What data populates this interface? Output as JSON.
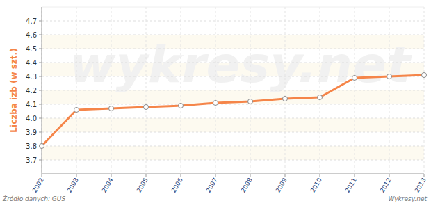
{
  "chart_data": {
    "type": "line",
    "y_label": "Liczba izb (w szt.)",
    "source": "Źródło danych: GUS",
    "credit": "Wykresy.net",
    "watermark": "wykresy.net",
    "categories": [
      "2002",
      "2003",
      "2004",
      "2005",
      "2006",
      "2007",
      "2008",
      "2009",
      "2010",
      "2011",
      "2012",
      "2013"
    ],
    "values": [
      3.8,
      4.06,
      4.07,
      4.08,
      4.09,
      4.11,
      4.12,
      4.14,
      4.15,
      4.29,
      4.3,
      4.31
    ],
    "color": "#f58549",
    "marker": "circle",
    "ylim": [
      3.6,
      4.8
    ],
    "yticks": [
      3.7,
      3.8,
      3.9,
      {
        "value": 4,
        "label": "4.0"
      },
      4.1,
      4.2,
      4.3,
      4.4,
      4.5,
      4.6,
      4.7
    ],
    "grid": true
  }
}
